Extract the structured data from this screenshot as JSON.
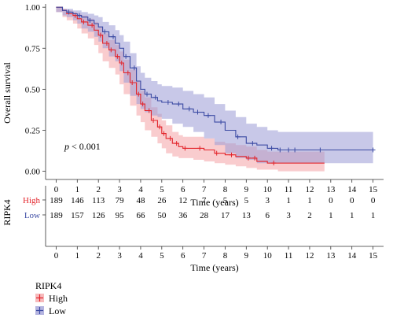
{
  "chart_data": {
    "type": "line",
    "subtype": "kaplan-meier",
    "ylabel": "Overall survival",
    "xlabel": "Time (years)",
    "xlim": [
      -0.5,
      15.5
    ],
    "ylim": [
      -0.05,
      1.02
    ],
    "x_ticks": [
      0,
      1,
      2,
      3,
      4,
      5,
      6,
      7,
      8,
      9,
      10,
      11,
      12,
      13,
      14,
      15
    ],
    "y_ticks": [
      {
        "value": 0.0,
        "label": "0.00"
      },
      {
        "value": 0.25,
        "label": "0.25"
      },
      {
        "value": 0.5,
        "label": "0.50"
      },
      {
        "value": 0.75,
        "label": "0.75"
      },
      {
        "value": 1.0,
        "label": "1.00"
      }
    ],
    "annotation": {
      "prefix": "p",
      "text": " < 0.001",
      "x": 0.4,
      "y": 0.15
    },
    "grid": false,
    "series": [
      {
        "name": "High",
        "color": "#e3242b",
        "fill": "#f4a3a5",
        "points": [
          [
            0,
            1.0
          ],
          [
            0.3,
            0.98
          ],
          [
            0.5,
            0.96
          ],
          [
            0.8,
            0.95
          ],
          [
            1.0,
            0.93
          ],
          [
            1.2,
            0.91
          ],
          [
            1.5,
            0.89
          ],
          [
            1.8,
            0.86
          ],
          [
            2.0,
            0.83
          ],
          [
            2.2,
            0.78
          ],
          [
            2.5,
            0.74
          ],
          [
            2.8,
            0.7
          ],
          [
            3.0,
            0.66
          ],
          [
            3.2,
            0.6
          ],
          [
            3.5,
            0.54
          ],
          [
            3.8,
            0.47
          ],
          [
            4.0,
            0.41
          ],
          [
            4.2,
            0.37
          ],
          [
            4.5,
            0.31
          ],
          [
            4.8,
            0.27
          ],
          [
            5.0,
            0.23
          ],
          [
            5.2,
            0.2
          ],
          [
            5.5,
            0.17
          ],
          [
            5.8,
            0.15
          ],
          [
            6.0,
            0.14
          ],
          [
            6.5,
            0.14
          ],
          [
            7.0,
            0.13
          ],
          [
            7.5,
            0.11
          ],
          [
            8.0,
            0.1
          ],
          [
            8.5,
            0.09
          ],
          [
            9.0,
            0.08
          ],
          [
            9.5,
            0.06
          ],
          [
            10.0,
            0.05
          ],
          [
            10.5,
            0.05
          ],
          [
            11.0,
            0.05
          ],
          [
            12.0,
            0.05
          ],
          [
            12.7,
            0.05
          ]
        ],
        "upper": [
          [
            0,
            1.0
          ],
          [
            0.3,
            0.99
          ],
          [
            0.5,
            0.98
          ],
          [
            0.8,
            0.97
          ],
          [
            1.0,
            0.96
          ],
          [
            1.2,
            0.95
          ],
          [
            1.5,
            0.93
          ],
          [
            1.8,
            0.91
          ],
          [
            2.0,
            0.88
          ],
          [
            2.2,
            0.84
          ],
          [
            2.5,
            0.8
          ],
          [
            2.8,
            0.77
          ],
          [
            3.0,
            0.73
          ],
          [
            3.2,
            0.68
          ],
          [
            3.5,
            0.62
          ],
          [
            3.8,
            0.55
          ],
          [
            4.0,
            0.49
          ],
          [
            4.2,
            0.45
          ],
          [
            4.5,
            0.39
          ],
          [
            4.8,
            0.35
          ],
          [
            5.0,
            0.31
          ],
          [
            5.2,
            0.28
          ],
          [
            5.5,
            0.24
          ],
          [
            5.8,
            0.22
          ],
          [
            6.0,
            0.21
          ],
          [
            6.5,
            0.21
          ],
          [
            7.0,
            0.2
          ],
          [
            7.5,
            0.18
          ],
          [
            8.0,
            0.17
          ],
          [
            8.5,
            0.16
          ],
          [
            9.0,
            0.15
          ],
          [
            9.5,
            0.13
          ],
          [
            10.0,
            0.12
          ],
          [
            10.5,
            0.12
          ],
          [
            11.0,
            0.12
          ],
          [
            12.0,
            0.12
          ],
          [
            12.7,
            0.12
          ]
        ],
        "lower": [
          [
            0,
            1.0
          ],
          [
            0.3,
            0.97
          ],
          [
            0.5,
            0.94
          ],
          [
            0.8,
            0.92
          ],
          [
            1.0,
            0.9
          ],
          [
            1.2,
            0.87
          ],
          [
            1.5,
            0.84
          ],
          [
            1.8,
            0.81
          ],
          [
            2.0,
            0.77
          ],
          [
            2.2,
            0.72
          ],
          [
            2.5,
            0.67
          ],
          [
            2.8,
            0.63
          ],
          [
            3.0,
            0.59
          ],
          [
            3.2,
            0.53
          ],
          [
            3.5,
            0.47
          ],
          [
            3.8,
            0.4
          ],
          [
            4.0,
            0.34
          ],
          [
            4.2,
            0.3
          ],
          [
            4.5,
            0.25
          ],
          [
            4.8,
            0.21
          ],
          [
            5.0,
            0.17
          ],
          [
            5.2,
            0.14
          ],
          [
            5.5,
            0.11
          ],
          [
            5.8,
            0.09
          ],
          [
            6.0,
            0.08
          ],
          [
            6.5,
            0.08
          ],
          [
            7.0,
            0.07
          ],
          [
            7.5,
            0.06
          ],
          [
            8.0,
            0.05
          ],
          [
            8.5,
            0.04
          ],
          [
            9.0,
            0.03
          ],
          [
            9.5,
            0.02
          ],
          [
            10.0,
            0.01
          ],
          [
            10.5,
            0.01
          ],
          [
            11.0,
            0.0
          ],
          [
            12.0,
            0.0
          ],
          [
            12.7,
            0.0
          ]
        ],
        "censor_x": [
          0.9,
          1.3,
          1.7,
          2.1,
          2.4,
          2.6,
          2.9,
          3.1,
          3.4,
          3.6,
          3.9,
          4.1,
          4.4,
          4.6,
          4.9,
          5.1,
          5.4,
          5.7,
          6.1,
          6.8,
          7.6,
          8.3,
          9.1,
          9.4,
          10.3
        ]
      },
      {
        "name": "Low",
        "color": "#3b4aa3",
        "fill": "#9b9bd6",
        "points": [
          [
            0,
            1.0
          ],
          [
            0.3,
            0.98
          ],
          [
            0.5,
            0.97
          ],
          [
            0.8,
            0.96
          ],
          [
            1.0,
            0.95
          ],
          [
            1.2,
            0.94
          ],
          [
            1.5,
            0.92
          ],
          [
            1.8,
            0.9
          ],
          [
            2.0,
            0.88
          ],
          [
            2.2,
            0.85
          ],
          [
            2.5,
            0.82
          ],
          [
            2.8,
            0.78
          ],
          [
            3.0,
            0.75
          ],
          [
            3.2,
            0.7
          ],
          [
            3.5,
            0.63
          ],
          [
            3.8,
            0.55
          ],
          [
            4.0,
            0.5
          ],
          [
            4.2,
            0.47
          ],
          [
            4.5,
            0.45
          ],
          [
            4.8,
            0.43
          ],
          [
            5.0,
            0.42
          ],
          [
            5.5,
            0.41
          ],
          [
            6.0,
            0.38
          ],
          [
            6.5,
            0.36
          ],
          [
            7.0,
            0.34
          ],
          [
            7.5,
            0.3
          ],
          [
            8.0,
            0.25
          ],
          [
            8.5,
            0.21
          ],
          [
            9.0,
            0.17
          ],
          [
            9.5,
            0.16
          ],
          [
            10.0,
            0.14
          ],
          [
            10.5,
            0.13
          ],
          [
            11.0,
            0.13
          ],
          [
            12.0,
            0.13
          ],
          [
            13.0,
            0.13
          ],
          [
            14.0,
            0.13
          ],
          [
            15.0,
            0.13
          ]
        ],
        "upper": [
          [
            0,
            1.0
          ],
          [
            0.3,
            0.99
          ],
          [
            0.5,
            0.99
          ],
          [
            0.8,
            0.98
          ],
          [
            1.0,
            0.98
          ],
          [
            1.2,
            0.97
          ],
          [
            1.5,
            0.96
          ],
          [
            1.8,
            0.95
          ],
          [
            2.0,
            0.94
          ],
          [
            2.2,
            0.91
          ],
          [
            2.5,
            0.89
          ],
          [
            2.8,
            0.86
          ],
          [
            3.0,
            0.83
          ],
          [
            3.2,
            0.79
          ],
          [
            3.5,
            0.72
          ],
          [
            3.8,
            0.64
          ],
          [
            4.0,
            0.6
          ],
          [
            4.2,
            0.57
          ],
          [
            4.5,
            0.55
          ],
          [
            4.8,
            0.53
          ],
          [
            5.0,
            0.52
          ],
          [
            5.5,
            0.51
          ],
          [
            6.0,
            0.49
          ],
          [
            6.5,
            0.47
          ],
          [
            7.0,
            0.45
          ],
          [
            7.5,
            0.41
          ],
          [
            8.0,
            0.37
          ],
          [
            8.5,
            0.33
          ],
          [
            9.0,
            0.29
          ],
          [
            9.5,
            0.27
          ],
          [
            10.0,
            0.25
          ],
          [
            10.5,
            0.24
          ],
          [
            11.0,
            0.24
          ],
          [
            12.0,
            0.24
          ],
          [
            13.0,
            0.24
          ],
          [
            14.0,
            0.24
          ],
          [
            15.0,
            0.24
          ]
        ],
        "lower": [
          [
            0,
            1.0
          ],
          [
            0.3,
            0.97
          ],
          [
            0.5,
            0.95
          ],
          [
            0.8,
            0.94
          ],
          [
            1.0,
            0.92
          ],
          [
            1.2,
            0.9
          ],
          [
            1.5,
            0.87
          ],
          [
            1.8,
            0.85
          ],
          [
            2.0,
            0.82
          ],
          [
            2.2,
            0.79
          ],
          [
            2.5,
            0.75
          ],
          [
            2.8,
            0.7
          ],
          [
            3.0,
            0.67
          ],
          [
            3.2,
            0.61
          ],
          [
            3.5,
            0.54
          ],
          [
            3.8,
            0.46
          ],
          [
            4.0,
            0.41
          ],
          [
            4.2,
            0.38
          ],
          [
            4.5,
            0.36
          ],
          [
            4.8,
            0.34
          ],
          [
            5.0,
            0.33
          ],
          [
            5.5,
            0.32
          ],
          [
            6.0,
            0.29
          ],
          [
            6.5,
            0.27
          ],
          [
            7.0,
            0.24
          ],
          [
            7.5,
            0.2
          ],
          [
            8.0,
            0.16
          ],
          [
            8.5,
            0.11
          ],
          [
            9.0,
            0.08
          ],
          [
            9.5,
            0.07
          ],
          [
            10.0,
            0.05
          ],
          [
            10.5,
            0.05
          ],
          [
            11.0,
            0.05
          ],
          [
            12.0,
            0.05
          ],
          [
            13.0,
            0.05
          ],
          [
            14.0,
            0.05
          ],
          [
            15.0,
            0.05
          ]
        ],
        "censor_x": [
          0.6,
          1.1,
          1.6,
          2.3,
          2.7,
          3.3,
          3.7,
          4.3,
          4.7,
          5.3,
          5.8,
          6.3,
          6.7,
          7.2,
          7.8,
          8.6,
          9.3,
          10.2,
          10.6,
          11.0,
          11.3,
          12.5,
          15.0
        ]
      }
    ],
    "risk_table": {
      "title": "RIPK4",
      "xlabel": "Time (years)",
      "times": [
        0,
        1,
        2,
        3,
        4,
        5,
        6,
        7,
        8,
        9,
        10,
        11,
        12,
        13,
        14,
        15
      ],
      "rows": [
        {
          "name": "High",
          "color": "#e3242b",
          "values": [
            189,
            146,
            113,
            79,
            48,
            26,
            12,
            7,
            5,
            5,
            3,
            1,
            1,
            0,
            0,
            0
          ]
        },
        {
          "name": "Low",
          "color": "#3b4aa3",
          "values": [
            189,
            157,
            126,
            95,
            66,
            50,
            36,
            28,
            17,
            13,
            6,
            3,
            2,
            1,
            1,
            1
          ]
        }
      ]
    },
    "legend": {
      "title": "RIPK4",
      "position": "bottom-left",
      "items": [
        {
          "name": "High",
          "color": "#e3242b",
          "fill": "#f4a3a5"
        },
        {
          "name": "Low",
          "color": "#3b4aa3",
          "fill": "#9b9bd6"
        }
      ]
    }
  }
}
